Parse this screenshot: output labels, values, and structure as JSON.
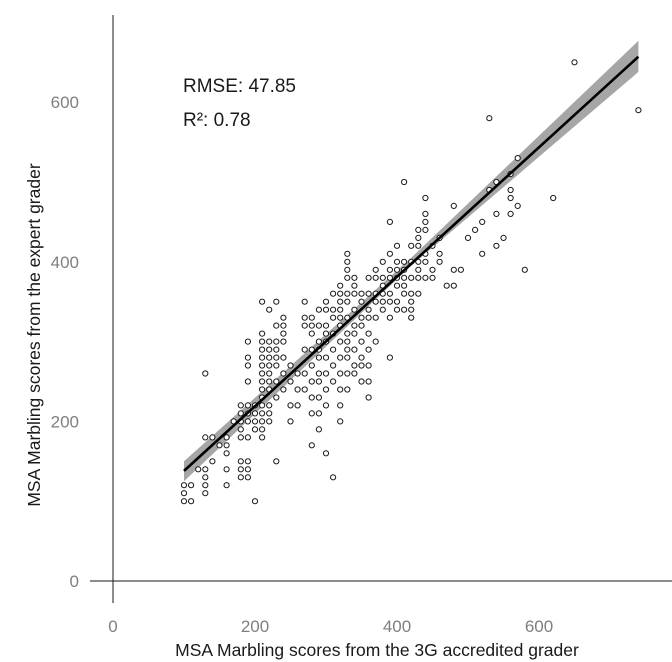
{
  "chart_data": {
    "type": "scatter",
    "title": "",
    "xlabel": "MSA Marbling scores from the 3G accredited grader",
    "ylabel": "MSA Marbling scores from the expert grader",
    "xlim": [
      0,
      760
    ],
    "ylim": [
      -20,
      715
    ],
    "x_ticks": [
      0,
      200,
      400,
      600
    ],
    "y_ticks": [
      0,
      200,
      400,
      600
    ],
    "annotations": {
      "rmse": "RMSE: 47.85",
      "r2": "R²: 0.78"
    },
    "grid": false,
    "legend": "none",
    "colors": {
      "points": "#1a1a1a",
      "fit_line": "#000000",
      "confidence_band": "#a6a6a6",
      "axes": "#1a1a1a",
      "ticks": "#7f7f7f"
    },
    "fit_line": {
      "x": [
        100,
        740
      ],
      "y": [
        138,
        657
      ]
    },
    "confidence_band": {
      "x": [
        100,
        420,
        740
      ],
      "lower": [
        125,
        395,
        638
      ],
      "upper": [
        150,
        405,
        677
      ]
    },
    "series": [
      {
        "points": [
          [
            100,
            100
          ],
          [
            100,
            110
          ],
          [
            100,
            120
          ],
          [
            110,
            100
          ],
          [
            110,
            120
          ],
          [
            120,
            140
          ],
          [
            130,
            110
          ],
          [
            130,
            120
          ],
          [
            130,
            130
          ],
          [
            130,
            140
          ],
          [
            130,
            180
          ],
          [
            130,
            260
          ],
          [
            140,
            150
          ],
          [
            140,
            180
          ],
          [
            150,
            170
          ],
          [
            160,
            120
          ],
          [
            160,
            140
          ],
          [
            160,
            160
          ],
          [
            160,
            170
          ],
          [
            160,
            180
          ],
          [
            170,
            200
          ],
          [
            180,
            130
          ],
          [
            180,
            140
          ],
          [
            180,
            150
          ],
          [
            180,
            180
          ],
          [
            180,
            190
          ],
          [
            180,
            200
          ],
          [
            180,
            210
          ],
          [
            180,
            220
          ],
          [
            190,
            130
          ],
          [
            190,
            140
          ],
          [
            190,
            150
          ],
          [
            190,
            180
          ],
          [
            190,
            200
          ],
          [
            190,
            210
          ],
          [
            190,
            220
          ],
          [
            190,
            250
          ],
          [
            190,
            270
          ],
          [
            190,
            280
          ],
          [
            190,
            300
          ],
          [
            200,
            100
          ],
          [
            200,
            190
          ],
          [
            200,
            200
          ],
          [
            200,
            210
          ],
          [
            200,
            220
          ],
          [
            210,
            180
          ],
          [
            210,
            190
          ],
          [
            210,
            200
          ],
          [
            210,
            210
          ],
          [
            210,
            220
          ],
          [
            210,
            230
          ],
          [
            210,
            240
          ],
          [
            210,
            250
          ],
          [
            210,
            260
          ],
          [
            210,
            270
          ],
          [
            210,
            280
          ],
          [
            210,
            290
          ],
          [
            210,
            300
          ],
          [
            210,
            310
          ],
          [
            210,
            350
          ],
          [
            220,
            200
          ],
          [
            220,
            210
          ],
          [
            220,
            220
          ],
          [
            220,
            240
          ],
          [
            220,
            250
          ],
          [
            220,
            260
          ],
          [
            220,
            270
          ],
          [
            220,
            280
          ],
          [
            220,
            290
          ],
          [
            220,
            300
          ],
          [
            220,
            340
          ],
          [
            230,
            150
          ],
          [
            230,
            230
          ],
          [
            230,
            250
          ],
          [
            230,
            270
          ],
          [
            230,
            280
          ],
          [
            230,
            290
          ],
          [
            230,
            300
          ],
          [
            230,
            320
          ],
          [
            230,
            350
          ],
          [
            240,
            240
          ],
          [
            240,
            260
          ],
          [
            240,
            280
          ],
          [
            240,
            300
          ],
          [
            240,
            310
          ],
          [
            240,
            320
          ],
          [
            240,
            330
          ],
          [
            250,
            200
          ],
          [
            250,
            220
          ],
          [
            250,
            250
          ],
          [
            250,
            270
          ],
          [
            260,
            220
          ],
          [
            260,
            240
          ],
          [
            260,
            260
          ],
          [
            270,
            240
          ],
          [
            270,
            260
          ],
          [
            270,
            290
          ],
          [
            270,
            320
          ],
          [
            270,
            330
          ],
          [
            270,
            350
          ],
          [
            280,
            170
          ],
          [
            280,
            210
          ],
          [
            280,
            230
          ],
          [
            280,
            250
          ],
          [
            280,
            270
          ],
          [
            280,
            290
          ],
          [
            280,
            310
          ],
          [
            280,
            320
          ],
          [
            280,
            330
          ],
          [
            290,
            190
          ],
          [
            290,
            210
          ],
          [
            290,
            230
          ],
          [
            290,
            250
          ],
          [
            290,
            260
          ],
          [
            290,
            280
          ],
          [
            290,
            290
          ],
          [
            290,
            300
          ],
          [
            290,
            320
          ],
          [
            290,
            340
          ],
          [
            300,
            160
          ],
          [
            300,
            220
          ],
          [
            300,
            240
          ],
          [
            300,
            260
          ],
          [
            300,
            280
          ],
          [
            300,
            300
          ],
          [
            300,
            310
          ],
          [
            300,
            320
          ],
          [
            300,
            340
          ],
          [
            300,
            350
          ],
          [
            310,
            130
          ],
          [
            310,
            250
          ],
          [
            310,
            270
          ],
          [
            310,
            290
          ],
          [
            310,
            310
          ],
          [
            310,
            330
          ],
          [
            310,
            340
          ],
          [
            310,
            360
          ],
          [
            320,
            200
          ],
          [
            320,
            220
          ],
          [
            320,
            240
          ],
          [
            320,
            260
          ],
          [
            320,
            280
          ],
          [
            320,
            300
          ],
          [
            320,
            320
          ],
          [
            320,
            330
          ],
          [
            320,
            340
          ],
          [
            320,
            350
          ],
          [
            320,
            360
          ],
          [
            320,
            370
          ],
          [
            330,
            240
          ],
          [
            330,
            260
          ],
          [
            330,
            280
          ],
          [
            330,
            290
          ],
          [
            330,
            300
          ],
          [
            330,
            310
          ],
          [
            330,
            330
          ],
          [
            330,
            350
          ],
          [
            330,
            360
          ],
          [
            330,
            380
          ],
          [
            330,
            390
          ],
          [
            330,
            400
          ],
          [
            330,
            410
          ],
          [
            340,
            260
          ],
          [
            340,
            270
          ],
          [
            340,
            290
          ],
          [
            340,
            310
          ],
          [
            340,
            320
          ],
          [
            340,
            340
          ],
          [
            340,
            360
          ],
          [
            340,
            370
          ],
          [
            340,
            380
          ],
          [
            350,
            250
          ],
          [
            350,
            270
          ],
          [
            350,
            280
          ],
          [
            350,
            300
          ],
          [
            350,
            320
          ],
          [
            350,
            330
          ],
          [
            350,
            350
          ],
          [
            350,
            360
          ],
          [
            360,
            230
          ],
          [
            360,
            250
          ],
          [
            360,
            270
          ],
          [
            360,
            290
          ],
          [
            360,
            310
          ],
          [
            360,
            330
          ],
          [
            360,
            340
          ],
          [
            360,
            360
          ],
          [
            360,
            380
          ],
          [
            370,
            300
          ],
          [
            370,
            330
          ],
          [
            370,
            350
          ],
          [
            370,
            360
          ],
          [
            370,
            380
          ],
          [
            370,
            390
          ],
          [
            380,
            340
          ],
          [
            380,
            350
          ],
          [
            380,
            360
          ],
          [
            380,
            370
          ],
          [
            380,
            380
          ],
          [
            380,
            400
          ],
          [
            390,
            280
          ],
          [
            390,
            330
          ],
          [
            390,
            350
          ],
          [
            390,
            360
          ],
          [
            390,
            380
          ],
          [
            390,
            390
          ],
          [
            390,
            410
          ],
          [
            390,
            450
          ],
          [
            400,
            340
          ],
          [
            400,
            350
          ],
          [
            400,
            370
          ],
          [
            400,
            380
          ],
          [
            400,
            390
          ],
          [
            400,
            400
          ],
          [
            400,
            420
          ],
          [
            410,
            340
          ],
          [
            410,
            360
          ],
          [
            410,
            370
          ],
          [
            410,
            380
          ],
          [
            410,
            390
          ],
          [
            410,
            400
          ],
          [
            410,
            500
          ],
          [
            420,
            330
          ],
          [
            420,
            340
          ],
          [
            420,
            350
          ],
          [
            420,
            360
          ],
          [
            420,
            380
          ],
          [
            420,
            400
          ],
          [
            420,
            420
          ],
          [
            430,
            360
          ],
          [
            430,
            380
          ],
          [
            430,
            390
          ],
          [
            430,
            400
          ],
          [
            430,
            420
          ],
          [
            430,
            430
          ],
          [
            430,
            440
          ],
          [
            440,
            380
          ],
          [
            440,
            400
          ],
          [
            440,
            410
          ],
          [
            440,
            440
          ],
          [
            440,
            450
          ],
          [
            440,
            460
          ],
          [
            440,
            480
          ],
          [
            450,
            380
          ],
          [
            450,
            390
          ],
          [
            450,
            420
          ],
          [
            460,
            400
          ],
          [
            460,
            410
          ],
          [
            460,
            430
          ],
          [
            470,
            370
          ],
          [
            480,
            370
          ],
          [
            480,
            390
          ],
          [
            480,
            470
          ],
          [
            490,
            390
          ],
          [
            500,
            430
          ],
          [
            510,
            440
          ],
          [
            520,
            410
          ],
          [
            520,
            450
          ],
          [
            530,
            490
          ],
          [
            530,
            580
          ],
          [
            540,
            420
          ],
          [
            540,
            460
          ],
          [
            540,
            500
          ],
          [
            550,
            430
          ],
          [
            560,
            460
          ],
          [
            560,
            480
          ],
          [
            560,
            490
          ],
          [
            560,
            510
          ],
          [
            570,
            470
          ],
          [
            570,
            530
          ],
          [
            580,
            390
          ],
          [
            620,
            480
          ],
          [
            650,
            650
          ],
          [
            740,
            590
          ]
        ]
      }
    ]
  }
}
